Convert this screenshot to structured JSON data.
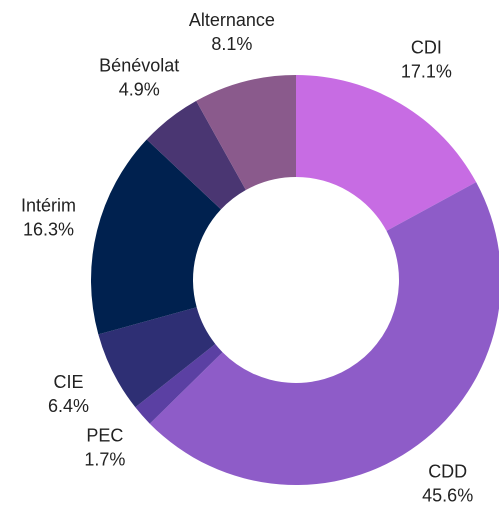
{
  "chart_data": {
    "type": "donut",
    "categories": [
      "CDI",
      "CDD",
      "PEC",
      "CIE",
      "Intérim",
      "Bénévolat",
      "Alternance"
    ],
    "values": [
      17.1,
      45.6,
      1.7,
      6.4,
      16.3,
      4.9,
      8.1
    ],
    "value_labels": [
      "17.1%",
      "45.6%",
      "1.7%",
      "6.4%",
      "16.3%",
      "4.9%",
      "8.1%"
    ],
    "colors": [
      "#c76ce3",
      "#8e5cc8",
      "#5b40a3",
      "#2e2f74",
      "#00214f",
      "#4a3672",
      "#8a5a8c"
    ]
  }
}
